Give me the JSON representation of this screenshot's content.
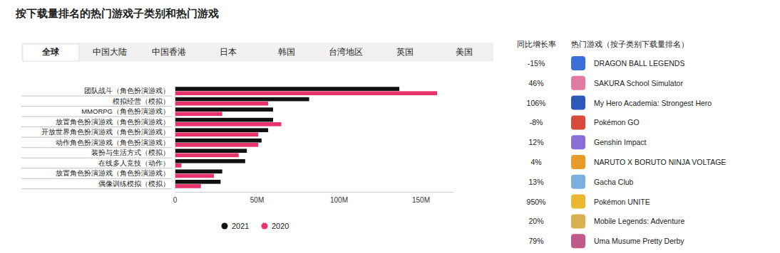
{
  "chart_data": {
    "type": "bar",
    "orientation": "horizontal",
    "title": "按下载量排名的热门游戏子类别和热门游戏",
    "categories": [
      "团队战斗（角色扮演游戏）",
      "模拟经营（模拟）",
      "MMORPG（角色扮演游戏）",
      "放置角色扮演游戏（角色扮演游戏）",
      "开放世界角色扮演游戏（角色扮演游戏）",
      "动作角色扮演游戏（角色扮演游戏）",
      "装扮与生活方式（模拟）",
      "在线多人竞技（动作）",
      "放置角色扮演游戏（角色扮演游戏）",
      "偶像训练模拟（模拟）"
    ],
    "series": [
      {
        "name": "2021",
        "color": "#111111",
        "values": [
          137,
          82,
          60,
          60,
          57,
          53,
          44,
          43,
          29,
          28
        ]
      },
      {
        "name": "2020",
        "color": "#e8336d",
        "values": [
          160,
          57,
          29,
          65,
          51,
          51,
          39,
          4.1,
          24,
          16
        ]
      }
    ],
    "xlim": [
      0,
      170
    ],
    "xticks": [
      0,
      {
        "value": 50,
        "label": "50M"
      },
      {
        "value": 100,
        "label": "100M"
      },
      {
        "value": 150,
        "label": "150M"
      }
    ],
    "grid": false,
    "legend": "bottom"
  },
  "tabs": [
    "全球",
    "中国大陆",
    "中国香港",
    "日本",
    "韩国",
    "台湾地区",
    "英国",
    "美国"
  ],
  "table": {
    "header": [
      "同比增长率",
      "热门游戏（按子类别下载量排名）"
    ],
    "rows": [
      [
        "-15%",
        "DRAGON BALL LEGENDS"
      ],
      [
        "46%",
        "SAKURA School Simulator"
      ],
      [
        "106%",
        "My Hero Academia: Strongest Hero"
      ],
      [
        "-8%",
        "Pokémon GO"
      ],
      [
        "12%",
        "Genshin Impact"
      ],
      [
        "4%",
        "NARUTO X BORUTO NINJA VOLTAGE"
      ],
      [
        "13%",
        "Gacha Club"
      ],
      [
        "950%",
        "Pokémon UNITE"
      ],
      [
        "20%",
        "Mobile Legends: Adventure"
      ],
      [
        "79%",
        "Uma Musume Pretty Derby"
      ]
    ]
  }
}
